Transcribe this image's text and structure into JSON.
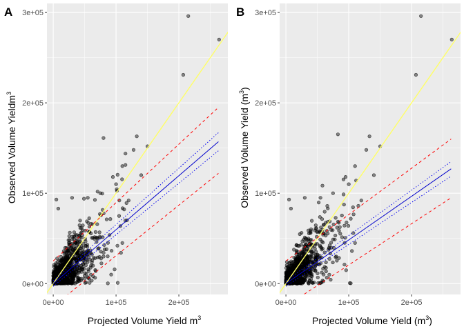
{
  "chart_data": [
    {
      "type": "scatter",
      "panel_label": "A",
      "xlabel": "Projected Volume Yield m",
      "xlabel_sup": "3",
      "xlabel_close": "",
      "ylabel": "Observed Volume Yield",
      "ylabel_mid": "m",
      "ylabel_sup": "3",
      "ylabel_close": ")",
      "xlim": [
        -10000,
        278000
      ],
      "ylim": [
        -12000,
        310000
      ],
      "x_ticks": [
        0,
        100000,
        200000
      ],
      "x_tick_labels": [
        "0e+00",
        "1e+05",
        "2e+05"
      ],
      "y_ticks": [
        0,
        100000,
        200000,
        300000
      ],
      "y_tick_labels": [
        "0e+00",
        "1e+05",
        "2e+05",
        "3e+05"
      ],
      "grid": true,
      "lines": [
        {
          "name": "1:1",
          "style": "solid",
          "color": "#ffff66",
          "x": [
            -15000,
            280000
          ],
          "y": [
            -15000,
            280000
          ]
        },
        {
          "name": "fit",
          "style": "solid",
          "color": "#0000cc",
          "x": [
            0,
            263000
          ],
          "y": [
            0,
            157000
          ]
        },
        {
          "name": "ci_upper",
          "style": "dotted",
          "color": "#0000ee",
          "x": [
            0,
            263000
          ],
          "y": [
            3000,
            167000
          ]
        },
        {
          "name": "ci_lower",
          "style": "dotted",
          "color": "#0000ee",
          "x": [
            0,
            263000
          ],
          "y": [
            -3000,
            147000
          ]
        },
        {
          "name": "pi_upper",
          "style": "dashed",
          "color": "#ff0000",
          "x": [
            0,
            263000
          ],
          "y": [
            25000,
            195000
          ]
        },
        {
          "name": "pi_lower",
          "style": "dashed",
          "color": "#ff0000",
          "x": [
            0,
            263000
          ],
          "y": [
            -25000,
            122000
          ]
        }
      ],
      "points_generated": {
        "n": 1100,
        "seed": 7,
        "slope": 0.68,
        "x_scale": 22000,
        "x_max": 120000,
        "noise_base": 6000,
        "noise_frac": 0.28
      },
      "points_explicit": [
        [
          207000,
          231000
        ],
        [
          215000,
          296000
        ],
        [
          264000,
          270000
        ],
        [
          133000,
          163000
        ],
        [
          150000,
          152000
        ],
        [
          128000,
          148000
        ],
        [
          110000,
          130000
        ],
        [
          95000,
          118000
        ],
        [
          5000,
          93000
        ],
        [
          8000,
          83000
        ],
        [
          60000,
          10000
        ],
        [
          110000,
          45000
        ],
        [
          80000,
          30000
        ],
        [
          140000,
          120000
        ],
        [
          120000,
          92000
        ],
        [
          100000,
          110000
        ],
        [
          75000,
          100000
        ],
        [
          55000,
          95000
        ],
        [
          30000,
          95000
        ],
        [
          40000,
          5000
        ]
      ]
    },
    {
      "type": "scatter",
      "panel_label": "B",
      "xlabel": "Projected Volume Yield (m",
      "xlabel_sup": "3",
      "xlabel_close": ")",
      "ylabel": "Observed Volume Yield (",
      "ylabel_mid": "m",
      "ylabel_sup": "3",
      "ylabel_close": ")",
      "xlim": [
        -10000,
        278000
      ],
      "ylim": [
        -12000,
        310000
      ],
      "x_ticks": [
        0,
        100000,
        200000
      ],
      "x_tick_labels": [
        "0e+00",
        "1e+05",
        "2e+05"
      ],
      "y_ticks": [
        0,
        100000,
        200000,
        300000
      ],
      "y_tick_labels": [
        "0e+00",
        "1e+05",
        "2e+05",
        "3e+05"
      ],
      "grid": true,
      "lines": [
        {
          "name": "1:1",
          "style": "solid",
          "color": "#ffff66",
          "x": [
            -15000,
            280000
          ],
          "y": [
            -15000,
            280000
          ]
        },
        {
          "name": "fit",
          "style": "solid",
          "color": "#0000cc",
          "x": [
            0,
            263000
          ],
          "y": [
            0,
            127000
          ]
        },
        {
          "name": "ci_upper",
          "style": "dotted",
          "color": "#0000ee",
          "x": [
            0,
            263000
          ],
          "y": [
            3000,
            135000
          ]
        },
        {
          "name": "ci_lower",
          "style": "dotted",
          "color": "#0000ee",
          "x": [
            0,
            263000
          ],
          "y": [
            -3000,
            119000
          ]
        },
        {
          "name": "pi_upper",
          "style": "dashed",
          "color": "#ff0000",
          "x": [
            0,
            263000
          ],
          "y": [
            25000,
            160000
          ]
        },
        {
          "name": "pi_lower",
          "style": "dashed",
          "color": "#ff0000",
          "x": [
            0,
            263000
          ],
          "y": [
            -25000,
            95000
          ]
        }
      ],
      "points_generated": {
        "n": 1100,
        "seed": 11,
        "slope": 0.68,
        "x_scale": 22000,
        "x_max": 120000,
        "noise_base": 6000,
        "noise_frac": 0.28
      },
      "points_explicit": [
        [
          207000,
          231000
        ],
        [
          215000,
          296000
        ],
        [
          264000,
          270000
        ],
        [
          133000,
          163000
        ],
        [
          150000,
          152000
        ],
        [
          128000,
          148000
        ],
        [
          110000,
          130000
        ],
        [
          95000,
          118000
        ],
        [
          5000,
          93000
        ],
        [
          8000,
          83000
        ],
        [
          60000,
          10000
        ],
        [
          110000,
          45000
        ],
        [
          80000,
          30000
        ],
        [
          140000,
          120000
        ],
        [
          120000,
          92000
        ],
        [
          100000,
          110000
        ],
        [
          75000,
          100000
        ],
        [
          55000,
          95000
        ],
        [
          30000,
          95000
        ],
        [
          40000,
          5000
        ]
      ]
    }
  ],
  "style": {
    "panel_bg": "#ebebeb",
    "grid_major": "#ffffff",
    "point_fill": "#000000",
    "point_alpha": 0.45
  }
}
